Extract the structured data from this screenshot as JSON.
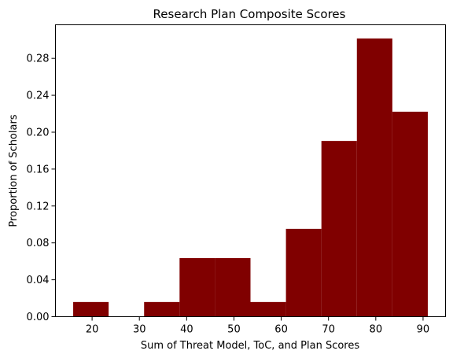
{
  "chart_data": {
    "type": "bar",
    "title": "Research Plan Composite Scores",
    "xlabel": "Sum of Threat Model, ToC, and Plan Scores",
    "ylabel": "Proportion of Scholars",
    "xlim": [
      12.25,
      94.75
    ],
    "ylim": [
      0,
      0.3164
    ],
    "grid": false,
    "legend": "none",
    "bar_color": "#800000",
    "bins": [
      {
        "x0": 16.0,
        "x1": 23.5,
        "value": 0.0159
      },
      {
        "x0": 23.5,
        "x1": 31.0,
        "value": 0.0
      },
      {
        "x0": 31.0,
        "x1": 38.5,
        "value": 0.0159
      },
      {
        "x0": 38.5,
        "x1": 46.0,
        "value": 0.0635
      },
      {
        "x0": 46.0,
        "x1": 53.5,
        "value": 0.0635
      },
      {
        "x0": 53.5,
        "x1": 61.0,
        "value": 0.0159
      },
      {
        "x0": 61.0,
        "x1": 68.5,
        "value": 0.0952
      },
      {
        "x0": 68.5,
        "x1": 76.0,
        "value": 0.1905
      },
      {
        "x0": 76.0,
        "x1": 83.5,
        "value": 0.3016
      },
      {
        "x0": 83.5,
        "x1": 91.0,
        "value": 0.2222
      }
    ],
    "x_ticks": [
      {
        "value": 20,
        "label": "20"
      },
      {
        "value": 30,
        "label": "30"
      },
      {
        "value": 40,
        "label": "40"
      },
      {
        "value": 50,
        "label": "50"
      },
      {
        "value": 60,
        "label": "60"
      },
      {
        "value": 70,
        "label": "70"
      },
      {
        "value": 80,
        "label": "80"
      },
      {
        "value": 90,
        "label": "90"
      }
    ],
    "y_ticks": [
      {
        "value": 0.0,
        "label": "0.00"
      },
      {
        "value": 0.04,
        "label": "0.04"
      },
      {
        "value": 0.08,
        "label": "0.08"
      },
      {
        "value": 0.12,
        "label": "0.12"
      },
      {
        "value": 0.16,
        "label": "0.16"
      },
      {
        "value": 0.2,
        "label": "0.20"
      },
      {
        "value": 0.24,
        "label": "0.24"
      },
      {
        "value": 0.28,
        "label": "0.28"
      }
    ]
  }
}
